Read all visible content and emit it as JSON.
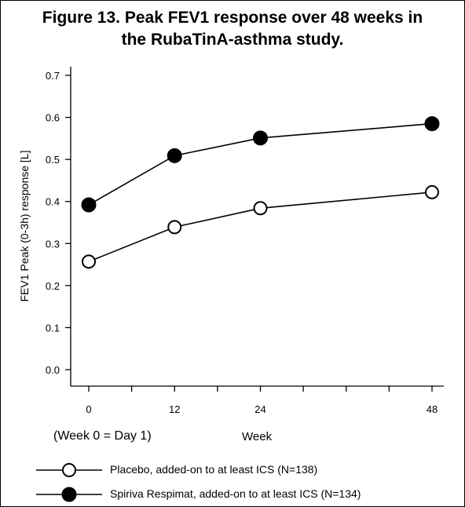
{
  "title_line1": "Figure 13. Peak FEV1 response over 48 weeks in",
  "title_line2": "the RubaTinA-asthma study.",
  "note": "(Week 0 = Day 1)",
  "chart_data": {
    "type": "line",
    "x": [
      0,
      12,
      24,
      48
    ],
    "x_ticks": [
      "0",
      "12",
      "24",
      "48"
    ],
    "xlabel": "Week",
    "ylabel": "FEV1 Peak (0-3h) response [L]",
    "ylim": [
      0.0,
      0.7
    ],
    "y_ticks": [
      "0.0",
      "0.1",
      "0.2",
      "0.3",
      "0.4",
      "0.5",
      "0.6",
      "0.7"
    ],
    "grid": false,
    "legend_position": "bottom",
    "series": [
      {
        "name": "Placebo, added-on to at least ICS (N=138)",
        "marker": "open-circle",
        "color": "#000000",
        "values": [
          0.257,
          0.339,
          0.384,
          0.422
        ]
      },
      {
        "name": "Spiriva Respimat, added-on to at least ICS (N=134)",
        "marker": "filled-circle",
        "color": "#000000",
        "values": [
          0.392,
          0.509,
          0.551,
          0.585
        ]
      }
    ]
  }
}
